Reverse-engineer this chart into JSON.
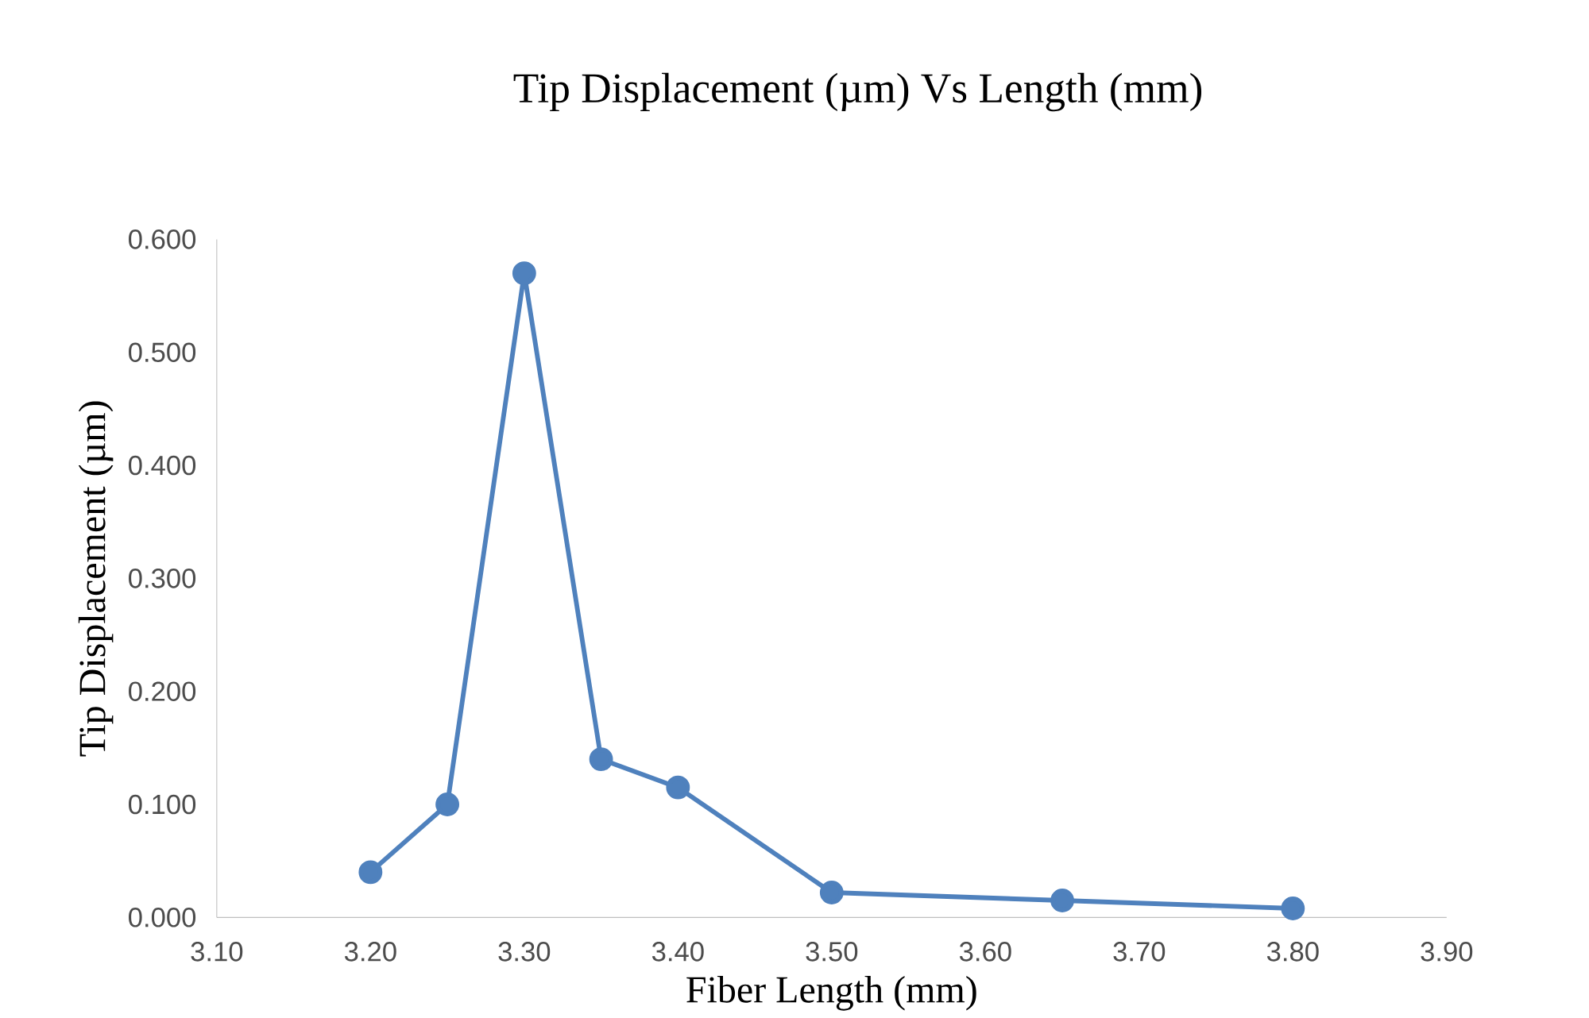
{
  "chart_data": {
    "type": "line",
    "title": "Tip Displacement (µm) Vs Length (mm)",
    "xlabel": "Fiber Length (mm)",
    "ylabel": "Tip Displacement (µm)",
    "x": [
      3.2,
      3.25,
      3.3,
      3.35,
      3.4,
      3.5,
      3.65,
      3.8
    ],
    "values": [
      0.04,
      0.1,
      0.57,
      0.14,
      0.115,
      0.022,
      0.015,
      0.008
    ],
    "color": "#4f81bd",
    "marker": "circle",
    "line_style": "solid",
    "xlim": [
      3.1,
      3.9
    ],
    "ylim": [
      0,
      0.6
    ],
    "xticks": [
      {
        "value": 3.1,
        "label": "3.10"
      },
      {
        "value": 3.2,
        "label": "3.20"
      },
      {
        "value": 3.3,
        "label": "3.30"
      },
      {
        "value": 3.4,
        "label": "3.40"
      },
      {
        "value": 3.5,
        "label": "3.50"
      },
      {
        "value": 3.6,
        "label": "3.60"
      },
      {
        "value": 3.7,
        "label": "3.70"
      },
      {
        "value": 3.8,
        "label": "3.80"
      },
      {
        "value": 3.9,
        "label": "3.90"
      }
    ],
    "yticks": [
      {
        "value": 0,
        "label": "0.000"
      },
      {
        "value": 0.1,
        "label": "0.100"
      },
      {
        "value": 0.2,
        "label": "0.200"
      },
      {
        "value": 0.3,
        "label": "0.300"
      },
      {
        "value": 0.4,
        "label": "0.400"
      },
      {
        "value": 0.5,
        "label": "0.500"
      },
      {
        "value": 0.6,
        "label": "0.600"
      }
    ]
  }
}
